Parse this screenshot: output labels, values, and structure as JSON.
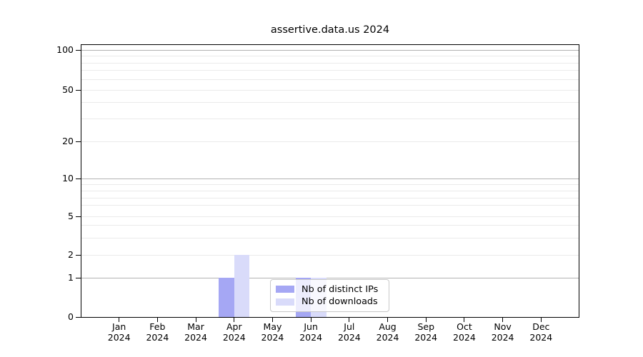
{
  "chart_data": {
    "type": "bar",
    "title": "assertive.data.us 2024",
    "x_categories": [
      "Jan",
      "Feb",
      "Mar",
      "Apr",
      "May",
      "Jun",
      "Jul",
      "Aug",
      "Sep",
      "Oct",
      "Nov",
      "Dec"
    ],
    "x_year": "2024",
    "series": [
      {
        "name": "Nb of distinct IPs",
        "color": "#a5a7f4",
        "values": [
          0,
          0,
          0,
          1,
          0,
          1,
          0,
          0,
          0,
          0,
          0,
          0
        ]
      },
      {
        "name": "Nb of downloads",
        "color": "#d9dbfa",
        "values": [
          0,
          0,
          0,
          2,
          0,
          1,
          0,
          0,
          0,
          0,
          0,
          0
        ]
      }
    ],
    "y_tick_labels": [
      100,
      50,
      20,
      10,
      5,
      2,
      1,
      0
    ],
    "ylim": [
      0,
      100
    ],
    "yscale": "log-like",
    "grid": "on",
    "legend_position": "inside lower-center"
  },
  "colors": {
    "bar_distinct_ips": "#a5a7f4",
    "bar_downloads": "#d9dbfa",
    "grid_major": "#b2b2b2",
    "grid_minor": "#eaeaea",
    "legend_border": "#c8c8c8"
  }
}
